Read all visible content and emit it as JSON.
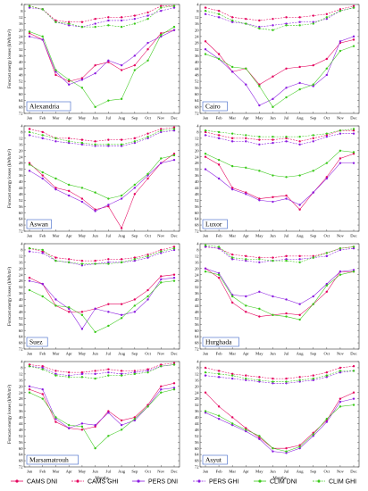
{
  "colors": {
    "CAMS DNI": "#e4005c",
    "CAMS GHI": "#e4005c",
    "PERS DNI": "#8a1ae0",
    "PERS GHI": "#8a1ae0",
    "CLIM DNI": "#39c919",
    "CLIM GHI": "#39c919"
  },
  "legend": [
    "CAMS DNI",
    "CAMS GHI",
    "PERS DNI",
    "PERS GHI",
    "CLIM DNI",
    "CLIM GHI"
  ],
  "chart_data": [
    {
      "type": "line",
      "title": "Alexandria",
      "xlabel": "",
      "ylabel": "Forecast energy losses (kWh/m²)",
      "ylim": [
        72,
        4
      ],
      "y_inverted": true,
      "categories": [
        "Jan",
        "Feb",
        "Mar",
        "Apr",
        "May",
        "Jun",
        "Jul",
        "Aug",
        "Sep",
        "Oct",
        "Nov",
        "Dec"
      ],
      "yticks": [
        4,
        8,
        12,
        16,
        20,
        24,
        28,
        32,
        36,
        40,
        44,
        48,
        52,
        56,
        60,
        64,
        68,
        72
      ],
      "series": [
        {
          "name": "CAMS DNI",
          "values": [
            22,
            26,
            48,
            52,
            50,
            42,
            40,
            45,
            42,
            32,
            22,
            20
          ]
        },
        {
          "name": "CAMS GHI",
          "values": [
            5,
            7,
            14,
            15,
            15,
            13,
            12,
            12,
            11,
            9,
            5,
            5
          ]
        },
        {
          "name": "PERS DNI",
          "values": [
            24,
            26,
            46,
            54,
            51,
            47,
            39,
            42,
            36,
            28,
            24,
            20
          ]
        },
        {
          "name": "PERS GHI",
          "values": [
            6,
            7,
            15,
            17,
            18,
            16,
            14,
            14,
            13,
            11,
            8,
            6
          ]
        },
        {
          "name": "CLIM DNI",
          "values": [
            21,
            24,
            45,
            51,
            56,
            68,
            64,
            63,
            45,
            39,
            23,
            18
          ]
        },
        {
          "name": "CLIM GHI",
          "values": [
            5,
            7,
            15,
            16,
            18,
            18,
            17,
            18,
            16,
            13,
            6,
            5
          ]
        }
      ]
    },
    {
      "type": "line",
      "title": "Cairo",
      "xlabel": "",
      "ylabel": "",
      "ylim": [
        72,
        4
      ],
      "y_inverted": true,
      "categories": [
        "Jan",
        "Feb",
        "Mar",
        "Apr",
        "May",
        "Jun",
        "Jul",
        "Aug",
        "Sep",
        "Oct",
        "Nov",
        "Dec"
      ],
      "yticks": [
        4,
        8,
        12,
        16,
        20,
        24,
        28,
        32,
        36,
        40,
        44,
        48,
        52,
        56,
        60,
        64,
        68,
        72
      ],
      "series": [
        {
          "name": "CAMS DNI",
          "values": [
            27,
            35,
            46,
            44,
            54,
            49,
            44,
            43,
            42,
            38,
            28,
            26
          ]
        },
        {
          "name": "CAMS GHI",
          "values": [
            6,
            8,
            12,
            13,
            14,
            13,
            12,
            12,
            11,
            10,
            7,
            5
          ]
        },
        {
          "name": "PERS DNI",
          "values": [
            32,
            38,
            46,
            54,
            67,
            63,
            56,
            53,
            55,
            48,
            27,
            24
          ]
        },
        {
          "name": "PERS GHI",
          "values": [
            10,
            12,
            15,
            16,
            18,
            17,
            16,
            15,
            15,
            13,
            8,
            6
          ]
        },
        {
          "name": "CLIM DNI",
          "values": [
            35,
            38,
            43,
            44,
            55,
            68,
            62,
            57,
            54,
            44,
            33,
            30
          ]
        },
        {
          "name": "CLIM GHI",
          "values": [
            8,
            10,
            14,
            16,
            19,
            20,
            17,
            17,
            16,
            12,
            8,
            6
          ]
        }
      ]
    },
    {
      "type": "line",
      "title": "Aswan",
      "xlabel": "",
      "ylabel": "Forecast energy losses (kWh/m²)",
      "ylim": [
        72,
        4
      ],
      "y_inverted": true,
      "categories": [
        "Jan",
        "Feb",
        "Mar",
        "Apr",
        "May",
        "Jun",
        "Jul",
        "Aug",
        "Sep",
        "Oct",
        "Nov",
        "Dec"
      ],
      "yticks": [
        4,
        8,
        12,
        16,
        20,
        24,
        28,
        32,
        36,
        40,
        44,
        48,
        52,
        56,
        60,
        64,
        68,
        72
      ],
      "series": [
        {
          "name": "CAMS DNI",
          "values": [
            28,
            36,
            44,
            46,
            51,
            58,
            56,
            70,
            48,
            38,
            28,
            22
          ]
        },
        {
          "name": "CAMS GHI",
          "values": [
            6,
            8,
            12,
            12,
            13,
            14,
            13,
            13,
            12,
            9,
            6,
            5
          ]
        },
        {
          "name": "PERS DNI",
          "values": [
            33,
            38,
            45,
            49,
            53,
            59,
            55,
            51,
            44,
            36,
            28,
            26
          ]
        },
        {
          "name": "PERS GHI",
          "values": [
            10,
            12,
            14,
            15,
            16,
            17,
            17,
            17,
            15,
            12,
            8,
            7
          ]
        },
        {
          "name": "CLIM DNI",
          "values": [
            29,
            34,
            38,
            42,
            44,
            47,
            51,
            49,
            42,
            35,
            25,
            23
          ]
        },
        {
          "name": "CLIM GHI",
          "values": [
            8,
            10,
            12,
            14,
            15,
            16,
            16,
            16,
            14,
            11,
            7,
            6
          ]
        }
      ]
    },
    {
      "type": "line",
      "title": "Luxor",
      "xlabel": "",
      "ylabel": "",
      "ylim": [
        72,
        4
      ],
      "y_inverted": true,
      "categories": [
        "Jan",
        "Feb",
        "Mar",
        "Apr",
        "May",
        "Jun",
        "Jul",
        "Aug",
        "Sep",
        "Oct",
        "Nov",
        "Dec"
      ],
      "yticks": [
        4,
        8,
        12,
        16,
        20,
        24,
        28,
        32,
        36,
        40,
        44,
        48,
        52,
        56,
        60,
        64,
        68,
        72
      ],
      "series": [
        {
          "name": "CAMS DNI",
          "values": [
            24,
            29,
            44,
            47,
            51,
            50,
            49,
            58,
            47,
            37,
            25,
            22
          ]
        },
        {
          "name": "CAMS GHI",
          "values": [
            8,
            10,
            12,
            12,
            13,
            13,
            12,
            14,
            12,
            10,
            7,
            7
          ]
        },
        {
          "name": "PERS DNI",
          "values": [
            32,
            38,
            45,
            48,
            52,
            53,
            51,
            55,
            47,
            38,
            28,
            28
          ]
        },
        {
          "name": "PERS GHI",
          "values": [
            10,
            12,
            14,
            14,
            16,
            15,
            14,
            16,
            14,
            11,
            9,
            9
          ]
        },
        {
          "name": "CLIM DNI",
          "values": [
            22,
            26,
            30,
            31,
            33,
            36,
            37,
            36,
            33,
            28,
            20,
            21
          ]
        },
        {
          "name": "CLIM GHI",
          "values": [
            7,
            8,
            9,
            10,
            11,
            11,
            11,
            11,
            10,
            9,
            7,
            6
          ]
        }
      ]
    },
    {
      "type": "line",
      "title": "Suez",
      "xlabel": "",
      "ylabel": "Forecast energy losses (kWh/m²)",
      "ylim": [
        72,
        4
      ],
      "y_inverted": true,
      "categories": [
        "Jan",
        "Feb",
        "Mar",
        "Apr",
        "May",
        "Jun",
        "Jul",
        "Aug",
        "Sep",
        "Oct",
        "Nov",
        "Dec"
      ],
      "yticks": [
        4,
        8,
        12,
        16,
        20,
        24,
        28,
        32,
        36,
        40,
        44,
        48,
        52,
        56,
        60,
        64,
        68,
        72
      ],
      "series": [
        {
          "name": "CAMS DNI",
          "values": [
            26,
            30,
            44,
            48,
            48,
            46,
            43,
            43,
            40,
            34,
            25,
            24
          ]
        },
        {
          "name": "CAMS GHI",
          "values": [
            7,
            9,
            13,
            14,
            15,
            15,
            14,
            14,
            13,
            11,
            8,
            6
          ]
        },
        {
          "name": "PERS DNI",
          "values": [
            28,
            30,
            40,
            46,
            59,
            46,
            48,
            50,
            48,
            40,
            27,
            26
          ]
        },
        {
          "name": "PERS GHI",
          "values": [
            9,
            10,
            15,
            16,
            18,
            17,
            16,
            16,
            15,
            13,
            10,
            8
          ]
        },
        {
          "name": "CLIM DNI",
          "values": [
            34,
            38,
            44,
            45,
            50,
            61,
            57,
            52,
            44,
            38,
            29,
            28
          ]
        },
        {
          "name": "CLIM GHI",
          "values": [
            7,
            8,
            15,
            16,
            17,
            17,
            17,
            16,
            14,
            12,
            9,
            7
          ]
        }
      ]
    },
    {
      "type": "line",
      "title": "Hurghada",
      "xlabel": "",
      "ylabel": "",
      "ylim": [
        72,
        4
      ],
      "y_inverted": true,
      "categories": [
        "Jan",
        "Feb",
        "Mar",
        "Apr",
        "May",
        "Jun",
        "Jul",
        "Aug",
        "Sep",
        "Oct",
        "Nov",
        "Dec"
      ],
      "yticks": [
        4,
        8,
        12,
        16,
        20,
        24,
        28,
        32,
        36,
        40,
        44,
        48,
        52,
        56,
        60,
        64,
        68,
        72
      ],
      "series": [
        {
          "name": "CAMS DNI",
          "values": [
            20,
            26,
            42,
            48,
            51,
            50,
            49,
            50,
            43,
            35,
            22,
            22
          ]
        },
        {
          "name": "CAMS GHI",
          "values": [
            6,
            7,
            11,
            12,
            13,
            13,
            12,
            12,
            12,
            10,
            7,
            6
          ]
        },
        {
          "name": "PERS DNI",
          "values": [
            20,
            23,
            37,
            38,
            35,
            38,
            40,
            43,
            38,
            30,
            22,
            21
          ]
        },
        {
          "name": "PERS GHI",
          "values": [
            6,
            7,
            14,
            15,
            16,
            15,
            14,
            14,
            13,
            12,
            8,
            7
          ]
        },
        {
          "name": "CLIM DNI",
          "values": [
            22,
            24,
            38,
            44,
            46,
            50,
            51,
            53,
            43,
            31,
            24,
            22
          ]
        },
        {
          "name": "CLIM GHI",
          "values": [
            5,
            6,
            13,
            14,
            14,
            15,
            15,
            16,
            13,
            10,
            7,
            6
          ]
        }
      ]
    },
    {
      "type": "line",
      "title": "Marsamatrouh",
      "xlabel": "Months",
      "ylabel": "Forecast energy losses (kWh/m²)",
      "ylim": [
        72,
        4
      ],
      "y_inverted": true,
      "categories": [
        "Jan",
        "Feb",
        "Mar",
        "Apr",
        "May",
        "Jun",
        "Jul",
        "Aug",
        "Sep",
        "Oct",
        "Nov",
        "Dec"
      ],
      "yticks": [
        4,
        8,
        12,
        16,
        20,
        24,
        28,
        32,
        36,
        40,
        44,
        48,
        52,
        56,
        60,
        64,
        68,
        72
      ],
      "series": [
        {
          "name": "CAMS DNI",
          "values": [
            22,
            25,
            43,
            47,
            48,
            46,
            36,
            42,
            40,
            32,
            20,
            18
          ]
        },
        {
          "name": "CAMS GHI",
          "values": [
            6,
            7,
            10,
            11,
            11,
            10,
            9,
            10,
            10,
            9,
            6,
            5
          ]
        },
        {
          "name": "PERS DNI",
          "values": [
            20,
            22,
            41,
            47,
            44,
            45,
            37,
            45,
            42,
            33,
            22,
            21
          ]
        },
        {
          "name": "PERS GHI",
          "values": [
            7,
            8,
            12,
            13,
            12,
            12,
            11,
            12,
            11,
            10,
            7,
            6
          ]
        },
        {
          "name": "CLIM DNI",
          "values": [
            24,
            28,
            40,
            45,
            46,
            60,
            52,
            48,
            41,
            33,
            24,
            22
          ]
        },
        {
          "name": "CLIM GHI",
          "values": [
            7,
            9,
            13,
            14,
            14,
            15,
            13,
            13,
            12,
            11,
            7,
            6
          ]
        }
      ]
    },
    {
      "type": "line",
      "title": "Asyut",
      "xlabel": "Months",
      "ylabel": "",
      "ylim": [
        72,
        4
      ],
      "y_inverted": true,
      "categories": [
        "Jan",
        "Feb",
        "Mar",
        "Apr",
        "May",
        "Jun",
        "Jul",
        "Aug",
        "Sep",
        "Oct",
        "Nov",
        "Dec"
      ],
      "yticks": [
        4,
        8,
        12,
        16,
        20,
        24,
        28,
        32,
        36,
        40,
        44,
        48,
        52,
        56,
        60,
        64,
        68,
        72
      ],
      "series": [
        {
          "name": "CAMS DNI",
          "values": [
            24,
            33,
            40,
            47,
            53,
            60,
            60,
            58,
            50,
            42,
            28,
            24
          ]
        },
        {
          "name": "CAMS GHI",
          "values": [
            8,
            10,
            12,
            13,
            14,
            15,
            15,
            14,
            13,
            11,
            8,
            7
          ]
        },
        {
          "name": "PERS DNI",
          "values": [
            37,
            41,
            45,
            49,
            54,
            62,
            63,
            60,
            52,
            43,
            30,
            28
          ]
        },
        {
          "name": "PERS GHI",
          "values": [
            13,
            14,
            15,
            16,
            17,
            18,
            18,
            17,
            16,
            14,
            11,
            10
          ]
        },
        {
          "name": "CLIM DNI",
          "values": [
            36,
            39,
            44,
            48,
            52,
            60,
            62,
            59,
            51,
            41,
            33,
            32
          ]
        },
        {
          "name": "CLIM GHI",
          "values": [
            11,
            12,
            13,
            15,
            16,
            17,
            17,
            16,
            15,
            13,
            10,
            10
          ]
        }
      ]
    }
  ]
}
